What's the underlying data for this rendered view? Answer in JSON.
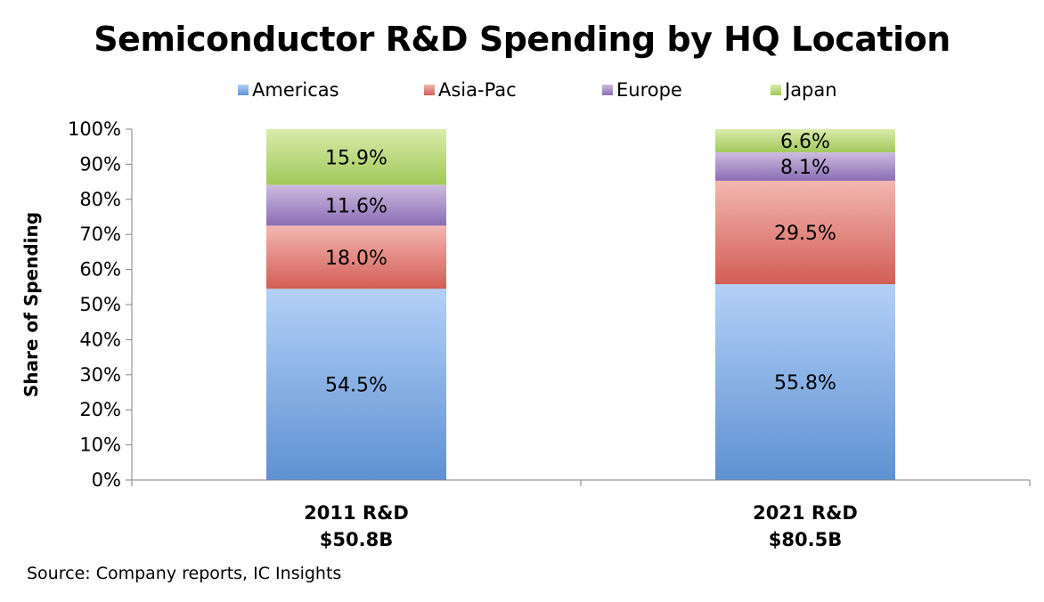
{
  "chart_data": {
    "type": "bar",
    "stacked": true,
    "title": "Semiconductor R&D Spending by HQ Location",
    "ylabel": "Share of Spending",
    "xlabel": "",
    "ylim": [
      0,
      100
    ],
    "yticks": [
      "0%",
      "10%",
      "20%",
      "30%",
      "40%",
      "50%",
      "60%",
      "70%",
      "80%",
      "90%",
      "100%"
    ],
    "categories": [
      [
        "2011 R&D",
        "$50.8B"
      ],
      [
        "2021 R&D",
        "$80.5B"
      ]
    ],
    "series": [
      {
        "name": "Americas",
        "values": [
          54.5,
          55.8
        ],
        "labels": [
          "54.5%",
          "55.8%"
        ],
        "color_top": "#b3d0f7",
        "color_bottom": "#5e91d2"
      },
      {
        "name": "Asia-Pac",
        "values": [
          18.0,
          29.5
        ],
        "labels": [
          "18.0%",
          "29.5%"
        ],
        "color_top": "#f3b7b1",
        "color_bottom": "#d25e56"
      },
      {
        "name": "Europe",
        "values": [
          11.6,
          8.1
        ],
        "labels": [
          "11.6%",
          "8.1%"
        ],
        "color_top": "#cdbbe0",
        "color_bottom": "#8a6db4"
      },
      {
        "name": "Japan",
        "values": [
          15.9,
          6.6
        ],
        "labels": [
          "15.9%",
          "6.6%"
        ],
        "color_top": "#d9ebaa",
        "color_bottom": "#a1c95a"
      }
    ],
    "legend_position": "top",
    "grid": false
  },
  "source": "Source: Company reports, IC Insights"
}
